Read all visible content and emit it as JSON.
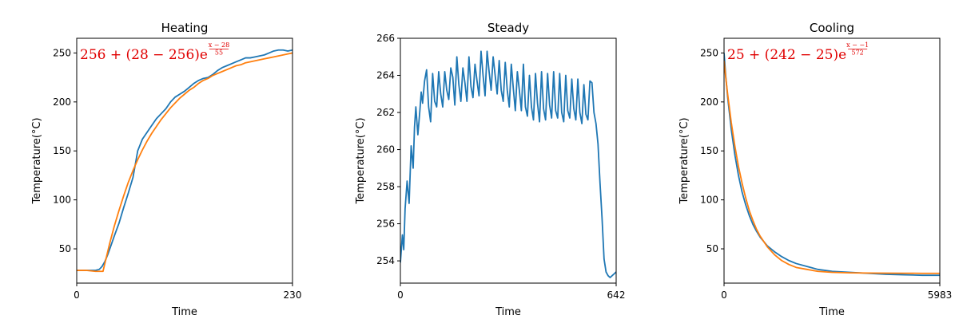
{
  "chart_data": [
    {
      "type": "line",
      "title": "Heating",
      "xlabel": "Time",
      "ylabel": "Temperature(°C)",
      "xlim": [
        0,
        230
      ],
      "ylim": [
        15,
        265
      ],
      "xticks": [
        0,
        230
      ],
      "xtick_labels": [
        "0",
        "230"
      ],
      "yticks": [
        50,
        100,
        150,
        200,
        250
      ],
      "yticks_labels": [
        "50",
        "100",
        "150",
        "200",
        "250"
      ],
      "annotation": {
        "color": "#e00000",
        "base": "256 + (28 − 256)e",
        "exp_num": "x − 28",
        "exp_den": "55"
      },
      "series": [
        {
          "color": "#1f77b4",
          "x": [
            0,
            10,
            20,
            24,
            27,
            30,
            33,
            36,
            40,
            45,
            50,
            55,
            60,
            65,
            70,
            75,
            80,
            85,
            90,
            95,
            100,
            105,
            110,
            115,
            120,
            125,
            130,
            135,
            140,
            145,
            150,
            155,
            160,
            165,
            170,
            175,
            180,
            185,
            190,
            195,
            200,
            205,
            210,
            215,
            220,
            225,
            230
          ],
          "y": [
            28,
            28,
            28,
            29,
            32,
            37,
            44,
            52,
            63,
            76,
            92,
            107,
            123,
            150,
            162,
            169,
            176,
            183,
            188,
            193,
            200,
            205,
            208,
            211,
            215,
            219,
            222,
            224,
            225,
            228,
            232,
            235,
            237,
            239,
            241,
            243,
            245,
            245,
            246,
            247,
            248,
            250,
            252,
            253,
            253,
            252,
            253
          ]
        },
        {
          "color": "#ff7f0e",
          "x": [
            0,
            10,
            20,
            28,
            30,
            35,
            40,
            45,
            50,
            55,
            60,
            65,
            70,
            75,
            80,
            85,
            90,
            95,
            100,
            105,
            110,
            115,
            120,
            125,
            130,
            135,
            140,
            145,
            150,
            155,
            160,
            165,
            170,
            175,
            180,
            185,
            190,
            195,
            200,
            205,
            210,
            215,
            220,
            225,
            230
          ],
          "y": [
            28,
            28,
            27,
            27,
            35,
            55,
            73,
            89,
            104,
            118,
            130,
            141,
            151,
            160,
            168,
            175,
            182,
            188,
            194,
            199,
            204,
            208,
            212,
            215,
            219,
            222,
            224,
            227,
            229,
            231,
            233,
            235,
            237,
            238,
            240,
            241,
            242,
            243,
            244,
            245,
            246,
            247,
            248,
            249,
            250
          ]
        }
      ]
    },
    {
      "type": "line",
      "title": "Steady",
      "xlabel": "Time",
      "ylabel": "Temperature(°C)",
      "xlim": [
        0,
        642
      ],
      "ylim": [
        252.8,
        266
      ],
      "xticks": [
        0,
        642
      ],
      "xtick_labels": [
        "0",
        "642"
      ],
      "yticks": [
        254,
        256,
        258,
        260,
        262,
        264,
        266
      ],
      "yticks_labels": [
        "254",
        "256",
        "258",
        "260",
        "262",
        "264",
        "266"
      ],
      "series": [
        {
          "color": "#1f77b4",
          "x": [
            0,
            6,
            10,
            14,
            20,
            26,
            32,
            38,
            42,
            46,
            52,
            58,
            62,
            66,
            72,
            78,
            84,
            90,
            96,
            102,
            108,
            114,
            120,
            126,
            132,
            138,
            144,
            150,
            156,
            162,
            168,
            174,
            180,
            186,
            192,
            198,
            204,
            210,
            216,
            222,
            228,
            234,
            240,
            246,
            252,
            258,
            264,
            270,
            276,
            282,
            288,
            294,
            300,
            306,
            312,
            318,
            324,
            330,
            336,
            342,
            348,
            354,
            360,
            366,
            372,
            378,
            384,
            390,
            396,
            402,
            408,
            414,
            420,
            426,
            432,
            438,
            444,
            450,
            456,
            462,
            468,
            474,
            480,
            486,
            492,
            498,
            504,
            510,
            516,
            522,
            528,
            534,
            540,
            546,
            552,
            558,
            564,
            570,
            576,
            582,
            588,
            594,
            600,
            606,
            612,
            618,
            624,
            630,
            636,
            642
          ],
          "y": [
            253.9,
            255.4,
            254.6,
            256.8,
            258.3,
            257.1,
            260.2,
            259.0,
            261.2,
            262.3,
            260.8,
            262.1,
            263.1,
            262.5,
            263.7,
            264.3,
            262.3,
            261.5,
            264.1,
            262.6,
            262.3,
            264.2,
            263.0,
            262.3,
            264.2,
            263.2,
            262.7,
            264.4,
            263.9,
            262.4,
            265.0,
            263.5,
            262.6,
            264.4,
            263.6,
            262.6,
            265.0,
            263.4,
            262.8,
            264.6,
            263.7,
            262.9,
            265.3,
            264.0,
            262.9,
            265.3,
            264.2,
            263.2,
            265.0,
            264.0,
            263.0,
            264.8,
            263.2,
            262.6,
            264.7,
            263.2,
            262.3,
            264.6,
            263.3,
            262.1,
            264.2,
            263.2,
            262.1,
            264.6,
            262.3,
            261.8,
            264.0,
            262.3,
            261.6,
            264.1,
            262.5,
            261.5,
            264.2,
            262.2,
            261.6,
            264.1,
            262.4,
            261.7,
            264.2,
            262.1,
            261.7,
            264.1,
            262.0,
            261.5,
            264.0,
            262.1,
            261.7,
            263.8,
            262.2,
            261.6,
            263.8,
            262.0,
            261.4,
            263.5,
            261.9,
            261.6,
            263.7,
            263.6,
            262.0,
            261.4,
            260.3,
            258.2,
            256.3,
            254.1,
            253.4,
            253.2,
            253.1,
            253.2,
            253.3,
            253.4
          ]
        }
      ]
    },
    {
      "type": "line",
      "title": "Cooling",
      "xlabel": "Time",
      "ylabel": "Temperature(°C)",
      "xlim": [
        0,
        5983
      ],
      "ylim": [
        15,
        265
      ],
      "xticks": [
        0,
        5983
      ],
      "xtick_labels": [
        "0",
        "5983"
      ],
      "yticks": [
        50,
        100,
        150,
        200,
        250
      ],
      "yticks_labels": [
        "50",
        "100",
        "150",
        "200",
        "250"
      ],
      "annotation": {
        "color": "#e00000",
        "base": "25 + (242 − 25)e",
        "exp_num": "x − −1",
        "exp_den": "572"
      },
      "series": [
        {
          "color": "#1f77b4",
          "x": [
            0,
            50,
            100,
            200,
            300,
            400,
            500,
            600,
            700,
            800,
            900,
            1000,
            1200,
            1400,
            1600,
            1800,
            2000,
            2300,
            2600,
            3000,
            3500,
            4000,
            4500,
            5000,
            5500,
            5983
          ],
          "y": [
            250,
            225,
            205,
            172,
            146,
            125,
            108,
            95,
            84,
            75,
            68,
            62,
            53,
            47,
            42,
            38,
            35,
            32,
            29,
            27,
            26,
            25,
            24,
            23.5,
            23,
            23
          ]
        },
        {
          "color": "#ff7f0e",
          "x": [
            0,
            50,
            100,
            200,
            300,
            400,
            500,
            600,
            700,
            800,
            900,
            1000,
            1200,
            1400,
            1600,
            1800,
            2000,
            2300,
            2600,
            3000,
            3500,
            4000,
            4500,
            5000,
            5500,
            5983
          ],
          "y": [
            242,
            224,
            208,
            179,
            155,
            134,
            117,
            102,
            89,
            79,
            70,
            63,
            52,
            44,
            38,
            34,
            31,
            29,
            27,
            26,
            25.5,
            25.3,
            25.2,
            25.1,
            25,
            25
          ]
        }
      ]
    }
  ]
}
